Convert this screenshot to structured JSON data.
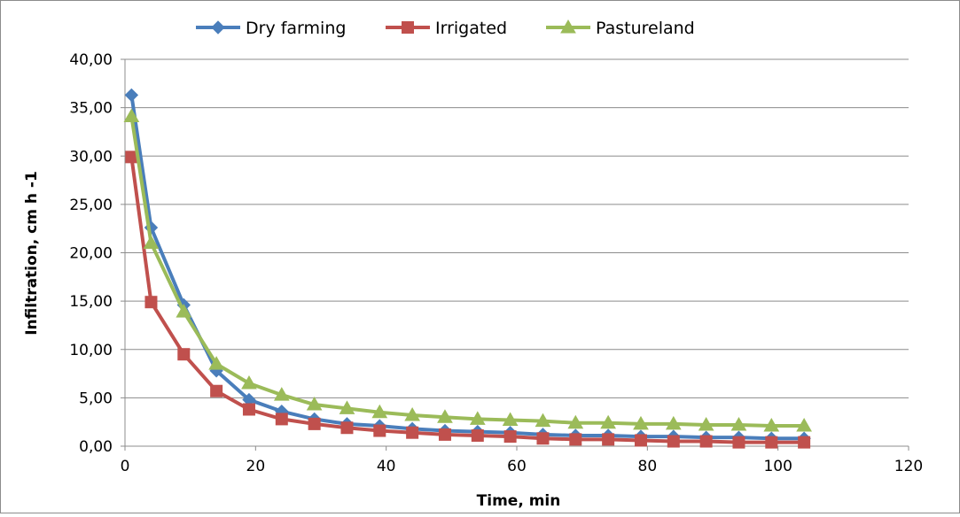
{
  "chart_data": {
    "type": "line",
    "title": "",
    "xlabel": "Time, min",
    "ylabel": "Infiltration, cm h -1",
    "xlim": [
      0,
      120
    ],
    "ylim": [
      0,
      40
    ],
    "x_ticks": [
      0,
      20,
      40,
      60,
      80,
      100,
      120
    ],
    "y_ticks": [
      0,
      5,
      10,
      15,
      20,
      25,
      30,
      35,
      40
    ],
    "x_tick_labels": [
      "0",
      "20",
      "40",
      "60",
      "80",
      "100",
      "120"
    ],
    "y_tick_labels": [
      "0,00",
      "5,00",
      "10,00",
      "15,00",
      "20,00",
      "25,00",
      "30,00",
      "35,00",
      "40,00"
    ],
    "grid": "horizontal",
    "legend_position": "top",
    "x": [
      1,
      4,
      9,
      14,
      19,
      24,
      29,
      34,
      39,
      44,
      49,
      54,
      59,
      64,
      69,
      74,
      79,
      84,
      89,
      94,
      99,
      104
    ],
    "series": [
      {
        "name": "Dry farming",
        "color": "#4a7ebb",
        "marker": "diamond",
        "values": [
          36.3,
          22.6,
          14.6,
          7.8,
          4.8,
          3.6,
          2.8,
          2.3,
          2.1,
          1.8,
          1.6,
          1.5,
          1.4,
          1.2,
          1.1,
          1.1,
          1.0,
          1.0,
          0.9,
          0.9,
          0.8,
          0.8
        ]
      },
      {
        "name": "Irrigated",
        "color": "#c0504d",
        "marker": "square",
        "values": [
          29.9,
          14.9,
          9.5,
          5.7,
          3.8,
          2.8,
          2.3,
          1.9,
          1.6,
          1.4,
          1.2,
          1.1,
          1.0,
          0.8,
          0.7,
          0.7,
          0.6,
          0.5,
          0.5,
          0.4,
          0.4,
          0.4
        ]
      },
      {
        "name": "Pastureland",
        "color": "#9bbb59",
        "marker": "triangle",
        "values": [
          34.1,
          21.0,
          13.9,
          8.5,
          6.5,
          5.3,
          4.3,
          3.9,
          3.5,
          3.2,
          3.0,
          2.8,
          2.7,
          2.6,
          2.4,
          2.4,
          2.3,
          2.3,
          2.2,
          2.2,
          2.1,
          2.1
        ]
      }
    ]
  }
}
